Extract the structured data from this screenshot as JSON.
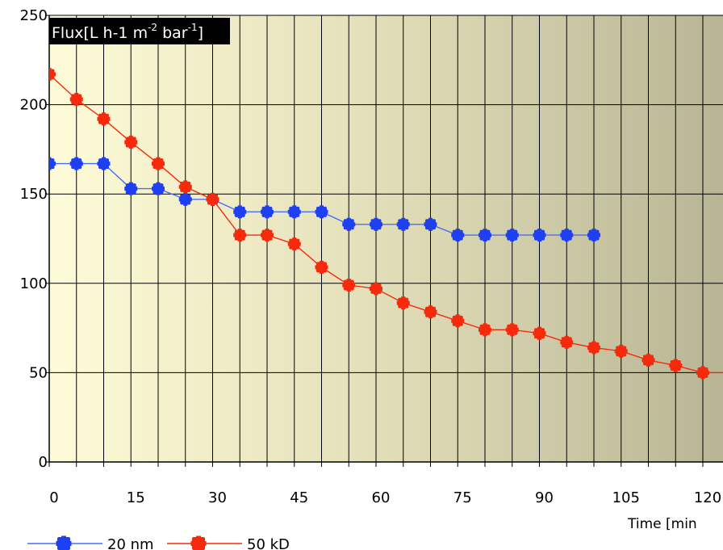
{
  "chart_data": {
    "type": "line",
    "ylabel": "Flux",
    "ylabel_unit": "[L h-1 m",
    "ylabel_exp1": "-2",
    "ylabel_mid": " bar",
    "ylabel_exp2": "-1",
    "ylabel_end": "]",
    "xlabel": "Time [min",
    "xlim": [
      0,
      124
    ],
    "ylim": [
      0,
      250
    ],
    "x_ticks": [
      0,
      15,
      30,
      45,
      60,
      75,
      90,
      105,
      120
    ],
    "x_tick_labels": [
      "0",
      "15",
      "30",
      "45",
      "60",
      "75",
      "90",
      "105",
      "120"
    ],
    "y_ticks": [
      0,
      50,
      100,
      150,
      200,
      250
    ],
    "y_tick_labels": [
      "0",
      "50",
      "100",
      "150",
      "200",
      "250"
    ],
    "grid": true,
    "legend_position": "bottom-left",
    "series": [
      {
        "name": "20 nm",
        "color": "#1f3ff2",
        "x": [
          0,
          5,
          10,
          15,
          20,
          25,
          30,
          35,
          40,
          45,
          50,
          55,
          60,
          65,
          70,
          75,
          80,
          85,
          90,
          95,
          100
        ],
        "y": [
          167,
          167,
          167,
          153,
          153,
          147,
          147,
          140,
          140,
          140,
          140,
          133,
          133,
          133,
          133,
          127,
          127,
          127,
          127,
          127,
          127
        ]
      },
      {
        "name": "50 kD",
        "color": "#f52a0d",
        "x": [
          0,
          5,
          10,
          15,
          20,
          25,
          30,
          35,
          40,
          45,
          50,
          55,
          60,
          65,
          70,
          75,
          80,
          85,
          90,
          95,
          100,
          105,
          110,
          115,
          120,
          125
        ],
        "y": [
          217,
          203,
          192,
          179,
          167,
          154,
          147,
          127,
          127,
          122,
          109,
          99,
          97,
          89,
          84,
          79,
          74,
          74,
          72,
          67,
          64,
          62,
          57,
          54,
          50,
          50
        ]
      }
    ]
  }
}
